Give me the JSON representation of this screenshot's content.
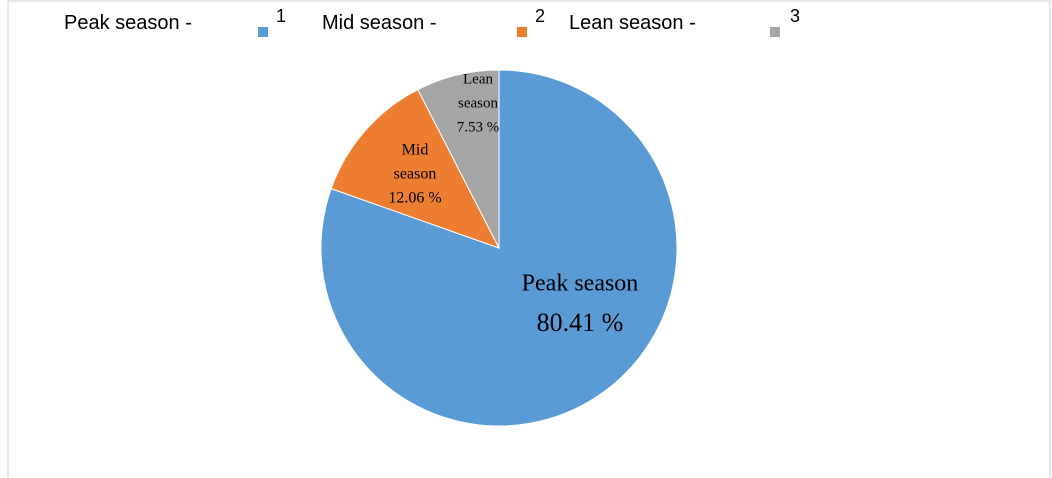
{
  "chart_data": {
    "type": "pie",
    "legend_prefixes": [
      "Peak season -",
      "Mid season -",
      "Lean season -"
    ],
    "categories": [
      "1",
      "2",
      "3"
    ],
    "values": [
      80.41,
      12.06,
      7.53
    ],
    "value_labels": [
      "80.41 %",
      "12.06 %",
      "7.53 %"
    ],
    "slice_labels": [
      [
        "Peak season"
      ],
      [
        "Mid",
        "season"
      ],
      [
        "Lean",
        "season"
      ]
    ],
    "colors": [
      "#5b9bd5",
      "#ed7d31",
      "#a5a5a5"
    ],
    "start_angle": 0,
    "direction": "clockwise"
  }
}
